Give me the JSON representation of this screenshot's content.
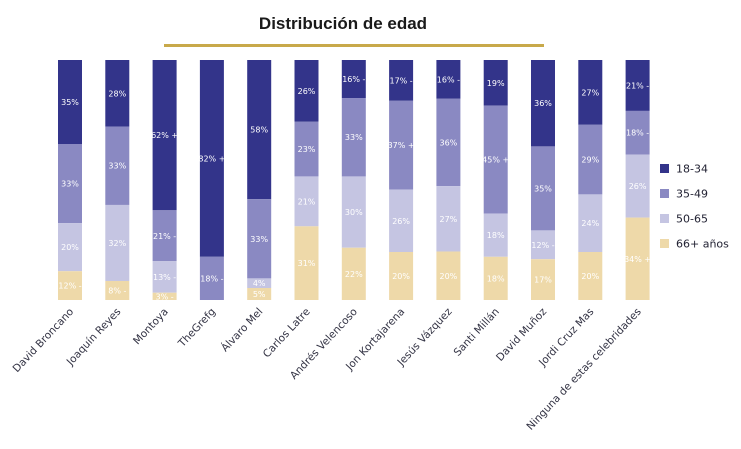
{
  "chart_data": {
    "type": "bar",
    "stacked": true,
    "normalized": true,
    "title": "Distribución de edad",
    "xlabel": "",
    "ylabel": "",
    "ylim": [
      0,
      100
    ],
    "grid": false,
    "legend_position": "right",
    "categories": [
      "David Broncano",
      "Joaquín Reyes",
      "Montoya",
      "TheGrefg",
      "Álvaro Mel",
      "Carlos Latre",
      "Andrés Velencoso",
      "Jon Kortajarena",
      "Jesús Vázquez",
      "Santi Millán",
      "David Muñoz",
      "Jordi Cruz Mas",
      "Ninguna de estas celebridades"
    ],
    "series": [
      {
        "name": "18-34",
        "color": "#33348a",
        "label_color": "#ffffff",
        "values": [
          35,
          28,
          62,
          82,
          58,
          26,
          16,
          17,
          16,
          19,
          36,
          27,
          21
        ],
        "labels": [
          "35%",
          "28%",
          "62% +",
          "82% +",
          "58%",
          "26%",
          "16% -",
          "17% -",
          "16% -",
          "19%",
          "36%",
          "27%",
          "21% -"
        ]
      },
      {
        "name": "35-49",
        "color": "#8a89c2",
        "label_color": "#ffffff",
        "values": [
          33,
          33,
          21,
          18,
          33,
          23,
          33,
          37,
          36,
          45,
          35,
          29,
          18
        ],
        "labels": [
          "33%",
          "33%",
          "21% -",
          "18% -",
          "33%",
          "23%",
          "33%",
          "37% +",
          "36%",
          "45% +",
          "35%",
          "29%",
          "18% -"
        ]
      },
      {
        "name": "50-65",
        "color": "#c5c5e2",
        "label_color": "#ffffff",
        "values": [
          20,
          32,
          13,
          0,
          4,
          21,
          30,
          26,
          27,
          18,
          12,
          24,
          26
        ],
        "labels": [
          "20%",
          "32%",
          "13% -",
          "",
          "4%",
          "21%",
          "30%",
          "26%",
          "27%",
          "18%",
          "12% -",
          "24%",
          "26%"
        ]
      },
      {
        "name": "66+ años",
        "color": "#eed9a9",
        "label_color": "#ffffff",
        "values": [
          12,
          8,
          3,
          0,
          5,
          31,
          22,
          20,
          20,
          18,
          17,
          20,
          34
        ],
        "labels": [
          "12% -",
          "8% -",
          "3% -",
          "",
          "5%",
          "31%",
          "22%",
          "20%",
          "20%",
          "18%",
          "17%",
          "20%",
          "34% +"
        ]
      }
    ]
  }
}
